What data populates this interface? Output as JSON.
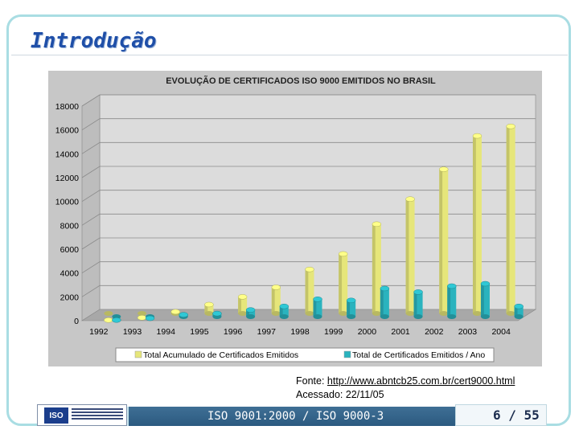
{
  "slide": {
    "title": "Introdução",
    "source_label": "Fonte: ",
    "source_url": "http://www.abntcb25.com.br/cert9000.html",
    "accessed": "Acessado: 22/11/05",
    "footer_text": "ISO 9001:2000 / ISO 9000-3",
    "page_number": "6 / 55",
    "logo_text": "ISO"
  },
  "colors": {
    "frame": "#a9dde3",
    "title": "#1f4fa8",
    "yellow_series": "#e6e67a",
    "teal_series": "#2ab3be",
    "chart_bg": "#c7c7c7",
    "wall": "#d8d8d8",
    "footer_bar": "#3f6f95"
  },
  "chart_data": {
    "type": "bar",
    "title": "EVOLUÇÃO DE CERTIFICADOS ISO 9000 EMITIDOS NO BRASIL",
    "categories": [
      "1992",
      "1993",
      "1994",
      "1995",
      "1996",
      "1997",
      "1998",
      "1999",
      "2000",
      "2001",
      "2002",
      "2003",
      "2004"
    ],
    "series": [
      {
        "name": "Total Acumulado de Certificados Emitidos",
        "color": "#e6e67a",
        "values": [
          50,
          250,
          750,
          1350,
          2000,
          2800,
          4300,
          5600,
          8100,
          10200,
          12700,
          15500,
          16300
        ]
      },
      {
        "name": "Total de Certificados Emitidos / Ano",
        "color": "#2ab3be",
        "values": [
          50,
          200,
          500,
          600,
          900,
          1200,
          1800,
          1700,
          2700,
          2400,
          2900,
          3100,
          1200
        ]
      }
    ],
    "ylim": [
      0,
      18000
    ],
    "yticks": [
      "0",
      "2000",
      "4000",
      "6000",
      "8000",
      "10000",
      "12000",
      "14000",
      "16000",
      "18000"
    ],
    "grid": true,
    "legend": "bottom"
  }
}
